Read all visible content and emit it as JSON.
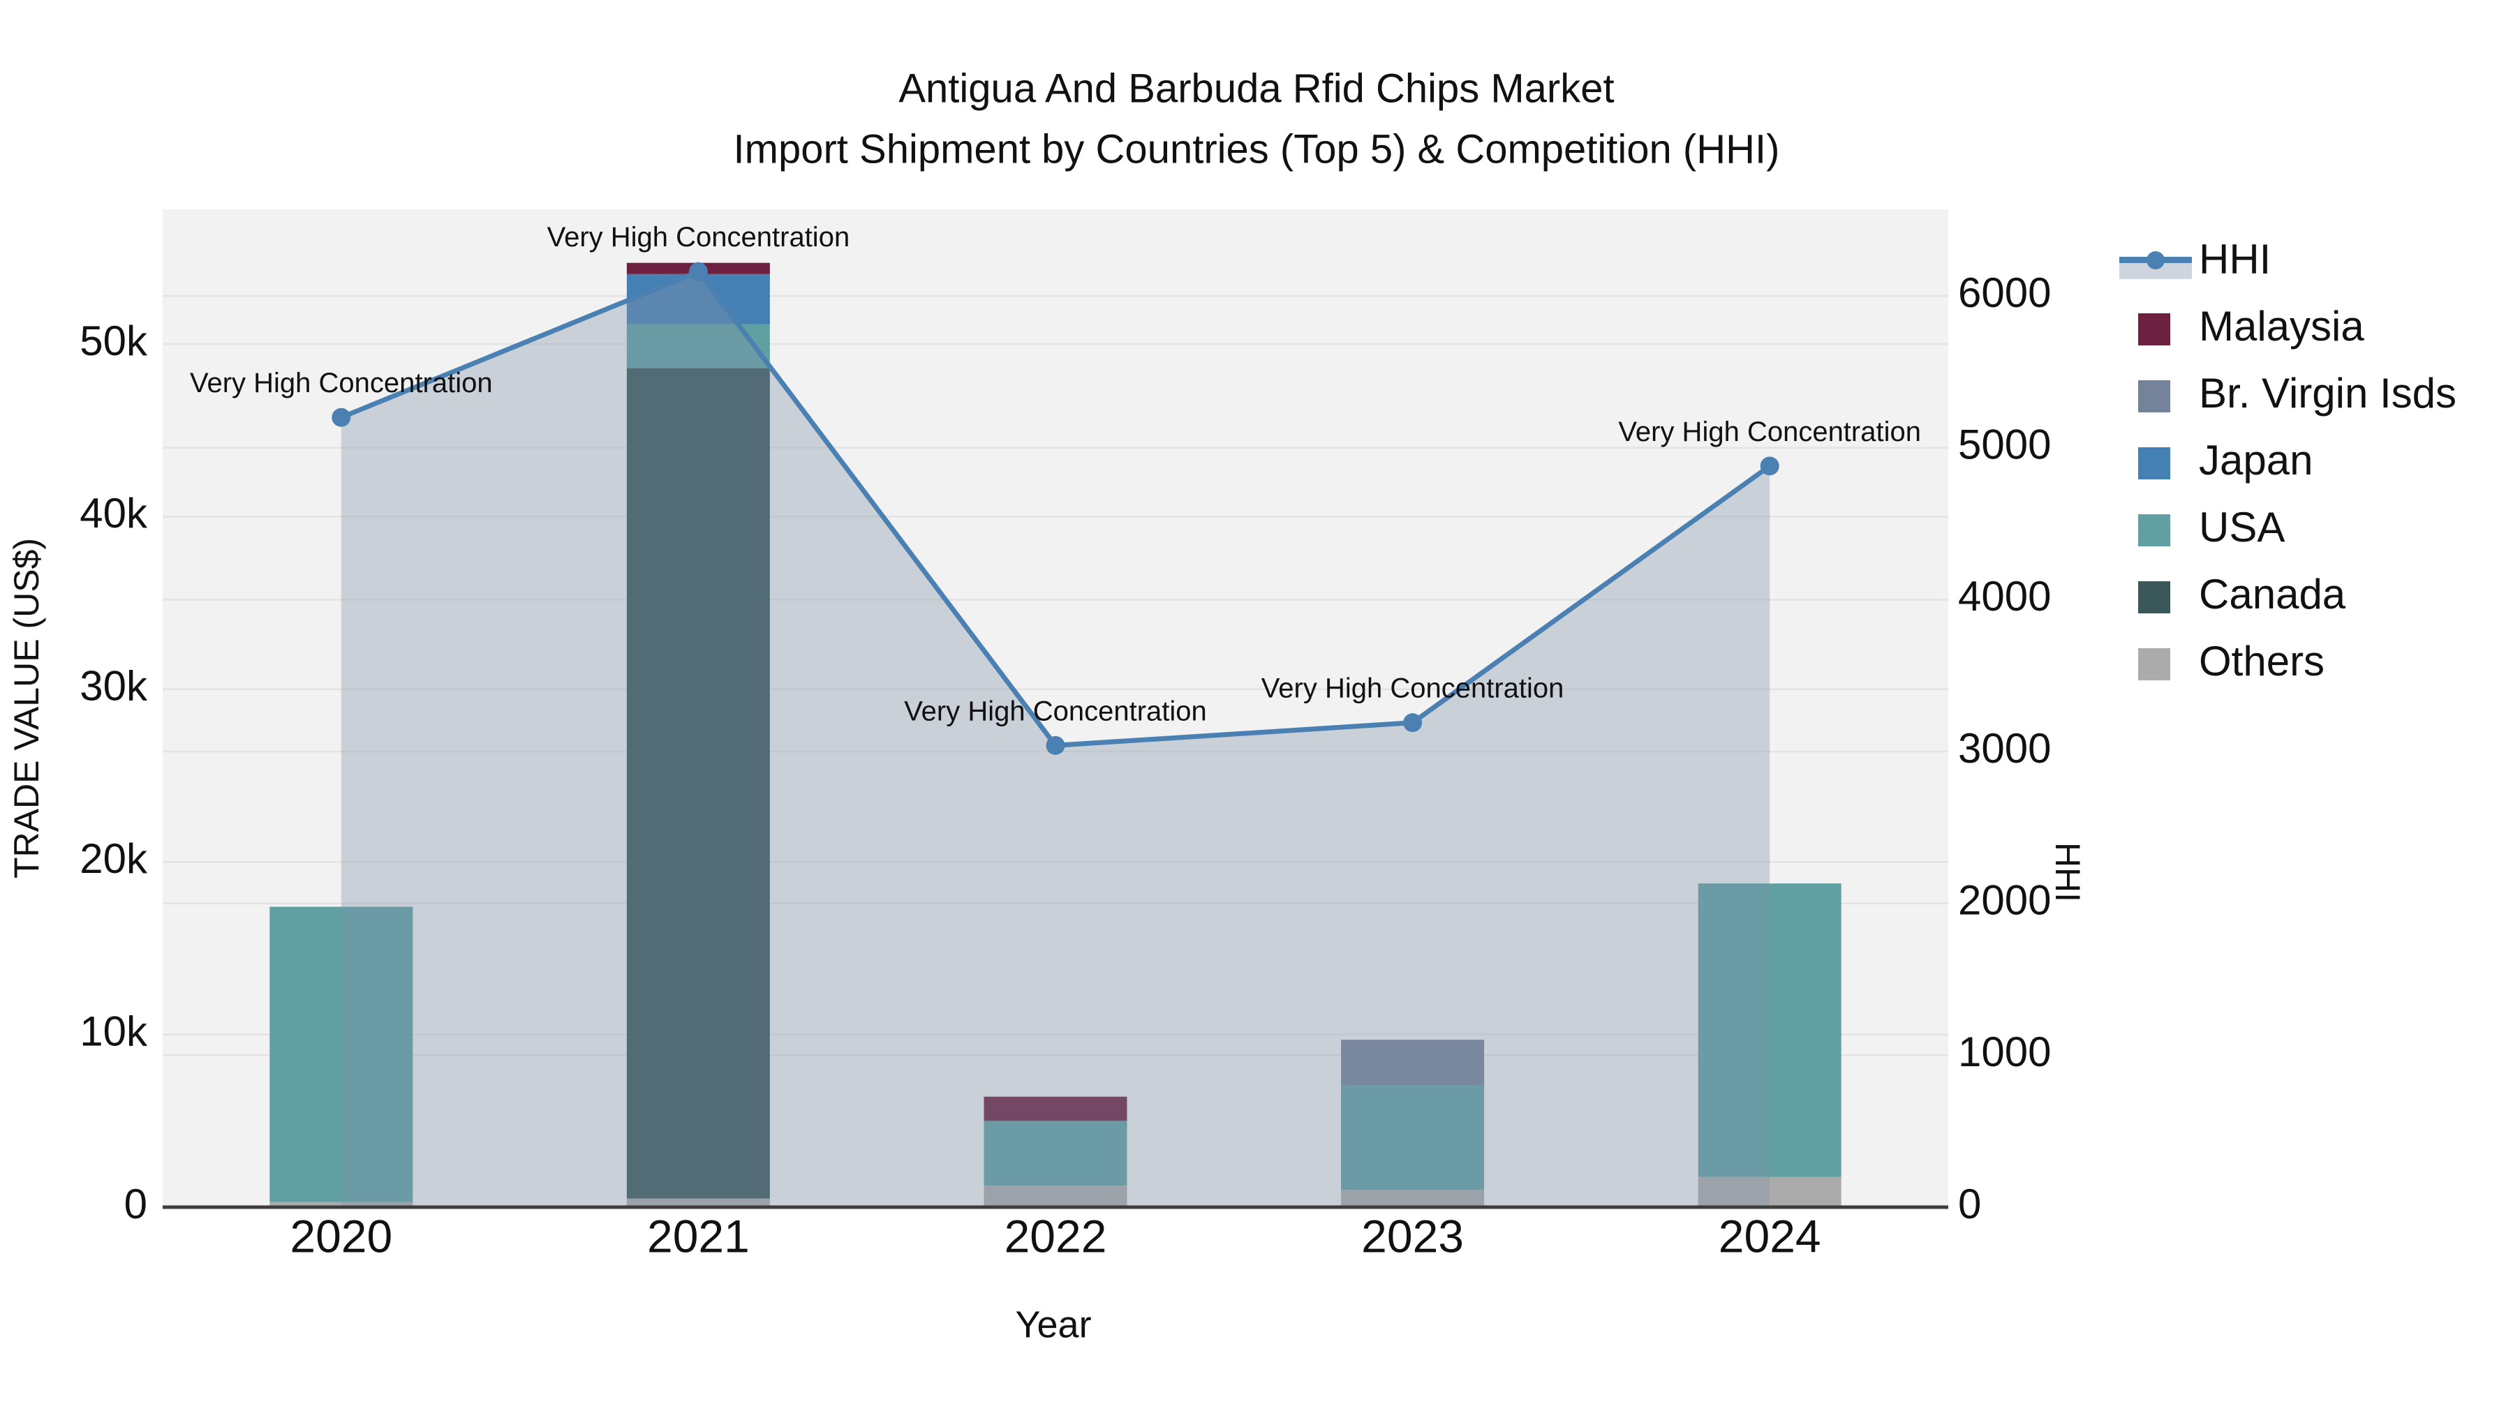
{
  "figure": {
    "title": "Antigua And Barbuda Rfid Chips Market",
    "subtitle": "Import Shipment by Countries (Top 5) & Competition (HHI)"
  },
  "chart_data": {
    "type": "bar",
    "subtype": "stacked-bar-with-secondary-axis-line",
    "title": "Antigua And Barbuda Rfid Chips Market",
    "subtitle": "Import Shipment by Countries (Top 5) & Competition (HHI)",
    "xlabel": "Year",
    "ylabel_left": "TRADE VALUE (US$)",
    "ylabel_right": "HHI",
    "categories": [
      "2020",
      "2021",
      "2022",
      "2023",
      "2024"
    ],
    "stacked_series_bottom_to_top": [
      {
        "name": "Others",
        "color": "#ababab",
        "values": [
          300,
          500,
          1250,
          1000,
          1750
        ]
      },
      {
        "name": "Canada",
        "color": "#3a575a",
        "values": [
          0,
          48100,
          0,
          0,
          0
        ]
      },
      {
        "name": "USA",
        "color": "#60a0a2",
        "values": [
          17100,
          2550,
          3750,
          6050,
          17000
        ]
      },
      {
        "name": "Japan",
        "color": "#4580b4",
        "values": [
          0,
          2900,
          0,
          0,
          0
        ]
      },
      {
        "name": "Br. Virgin Isds",
        "color": "#75839a",
        "values": [
          0,
          0,
          0,
          2650,
          0
        ]
      },
      {
        "name": "Malaysia",
        "color": "#6d2040",
        "values": [
          0,
          650,
          1400,
          0,
          0
        ]
      }
    ],
    "bar_totals": [
      17400,
      54700,
      6400,
      9700,
      18750
    ],
    "line_series": {
      "name": "HHI",
      "values": [
        5200,
        6160,
        3040,
        3190,
        4880
      ],
      "color": "#4a80b2",
      "area_fill": "rgba(128,146,170,0.35)",
      "marker": "circle"
    },
    "annotations": [
      {
        "category": "2020",
        "label": "Very High Concentration"
      },
      {
        "category": "2021",
        "label": "Very High Concentration"
      },
      {
        "category": "2022",
        "label": "Very High Concentration"
      },
      {
        "category": "2023",
        "label": "Very High Concentration"
      },
      {
        "category": "2024",
        "label": "Very High Concentration"
      }
    ],
    "axes": {
      "left": {
        "max": 57800,
        "ticks": [
          {
            "value": 0,
            "label": "0"
          },
          {
            "value": 10000,
            "label": "10k"
          },
          {
            "value": 20000,
            "label": "20k"
          },
          {
            "value": 30000,
            "label": "30k"
          },
          {
            "value": 40000,
            "label": "40k"
          },
          {
            "value": 50000,
            "label": "50k"
          }
        ]
      },
      "right": {
        "max": 6570,
        "ticks": [
          {
            "value": 0,
            "label": "0"
          },
          {
            "value": 1000,
            "label": "1000"
          },
          {
            "value": 2000,
            "label": "2000"
          },
          {
            "value": 3000,
            "label": "3000"
          },
          {
            "value": 4000,
            "label": "4000"
          },
          {
            "value": 5000,
            "label": "5000"
          },
          {
            "value": 6000,
            "label": "6000"
          }
        ]
      },
      "x_ticks": [
        "2020",
        "2021",
        "2022",
        "2023",
        "2024"
      ]
    },
    "legend": {
      "position": "right",
      "entries": [
        {
          "label": "HHI",
          "type": "line",
          "color": "#4a80b2",
          "band_color": "#cfd5df"
        },
        {
          "label": "Malaysia",
          "type": "patch",
          "color": "#6d2040"
        },
        {
          "label": "Br. Virgin Isds",
          "type": "patch",
          "color": "#75839a"
        },
        {
          "label": "Japan",
          "type": "patch",
          "color": "#4580b4"
        },
        {
          "label": "USA",
          "type": "patch",
          "color": "#60a0a2"
        },
        {
          "label": "Canada",
          "type": "patch",
          "color": "#3a575a"
        },
        {
          "label": "Others",
          "type": "patch",
          "color": "#ababab"
        }
      ]
    },
    "grid": true,
    "plot_background": "#f2f2f2",
    "axis_spine_color": "#3d3d3d",
    "gridline_color": "#e3e3e3"
  }
}
